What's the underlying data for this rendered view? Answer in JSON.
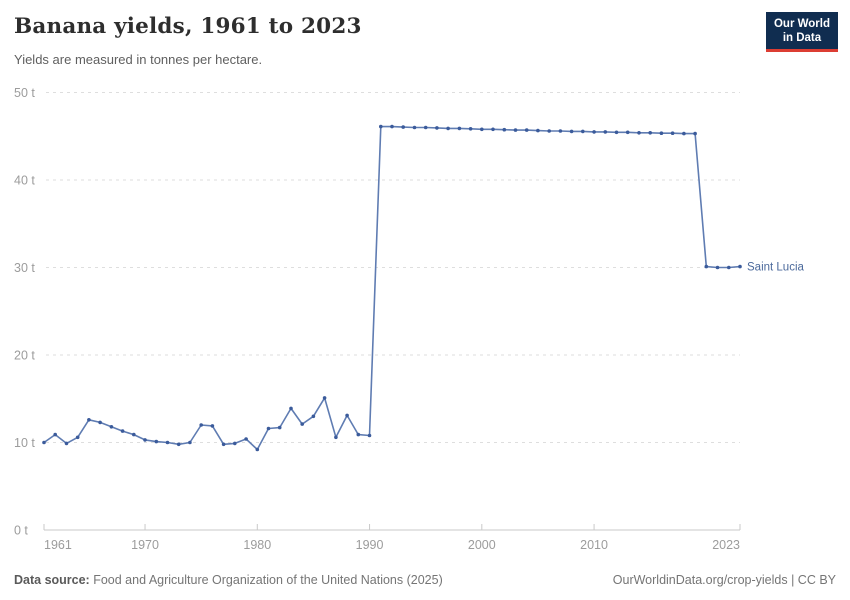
{
  "header": {
    "title": "Banana yields, 1961 to 2023",
    "subtitle": "Yields are measured in tonnes per hectare.",
    "logo": {
      "line1": "Our World",
      "line2": "in Data",
      "bg_color": "#102d50",
      "accent_color": "#dc3d33"
    }
  },
  "chart_data": {
    "type": "line",
    "title": "Banana yields, 1961 to 2023",
    "unit": "t",
    "xlabel": "",
    "ylabel": "tonnes per hectare",
    "xlim": [
      1961,
      2023
    ],
    "ylim": [
      0,
      50
    ],
    "grid": "horizontal dashed",
    "legend_position": "right-of-last-point",
    "x_ticks": [
      1961,
      1970,
      1980,
      1990,
      2000,
      2010,
      2023
    ],
    "y_ticks": [
      0,
      10,
      20,
      30,
      40,
      50
    ],
    "x": [
      1961,
      1962,
      1963,
      1964,
      1965,
      1966,
      1967,
      1968,
      1969,
      1970,
      1971,
      1972,
      1973,
      1974,
      1975,
      1976,
      1977,
      1978,
      1979,
      1980,
      1981,
      1982,
      1983,
      1984,
      1985,
      1986,
      1987,
      1988,
      1989,
      1990,
      1991,
      1992,
      1993,
      1994,
      1995,
      1996,
      1997,
      1998,
      1999,
      2000,
      2001,
      2002,
      2003,
      2004,
      2005,
      2006,
      2007,
      2008,
      2009,
      2010,
      2011,
      2012,
      2013,
      2014,
      2015,
      2016,
      2017,
      2018,
      2019,
      2020,
      2021,
      2022,
      2023
    ],
    "series": [
      {
        "name": "Saint Lucia",
        "color_line": "#5f7cb2",
        "color_marker": "#3b5b9b",
        "color_label": "#4c6a9c",
        "values": [
          10.0,
          10.9,
          9.9,
          10.6,
          12.6,
          12.3,
          11.8,
          11.3,
          10.9,
          10.3,
          10.1,
          10.0,
          9.8,
          10.0,
          12.0,
          11.9,
          9.8,
          9.9,
          10.4,
          9.2,
          11.6,
          11.7,
          13.9,
          12.1,
          13.0,
          15.1,
          10.6,
          13.1,
          10.9,
          10.8,
          46.1,
          46.1,
          46.05,
          46.0,
          46.0,
          45.95,
          45.9,
          45.9,
          45.85,
          45.8,
          45.8,
          45.75,
          45.7,
          45.7,
          45.65,
          45.6,
          45.6,
          45.55,
          45.55,
          45.5,
          45.5,
          45.45,
          45.45,
          45.4,
          45.4,
          45.35,
          45.35,
          45.3,
          45.3,
          30.1,
          30.0,
          30.0,
          30.1
        ]
      }
    ],
    "style": {
      "axis_color": "#c9c9c9",
      "gridline_color": "#dedede",
      "tick_label_color": "#9c9c9c"
    }
  },
  "footer": {
    "source_label": "Data source:",
    "source_text": "Food and Agriculture Organization of the United Nations (2025)",
    "credit": "OurWorldinData.org/crop-yields | CC BY"
  }
}
